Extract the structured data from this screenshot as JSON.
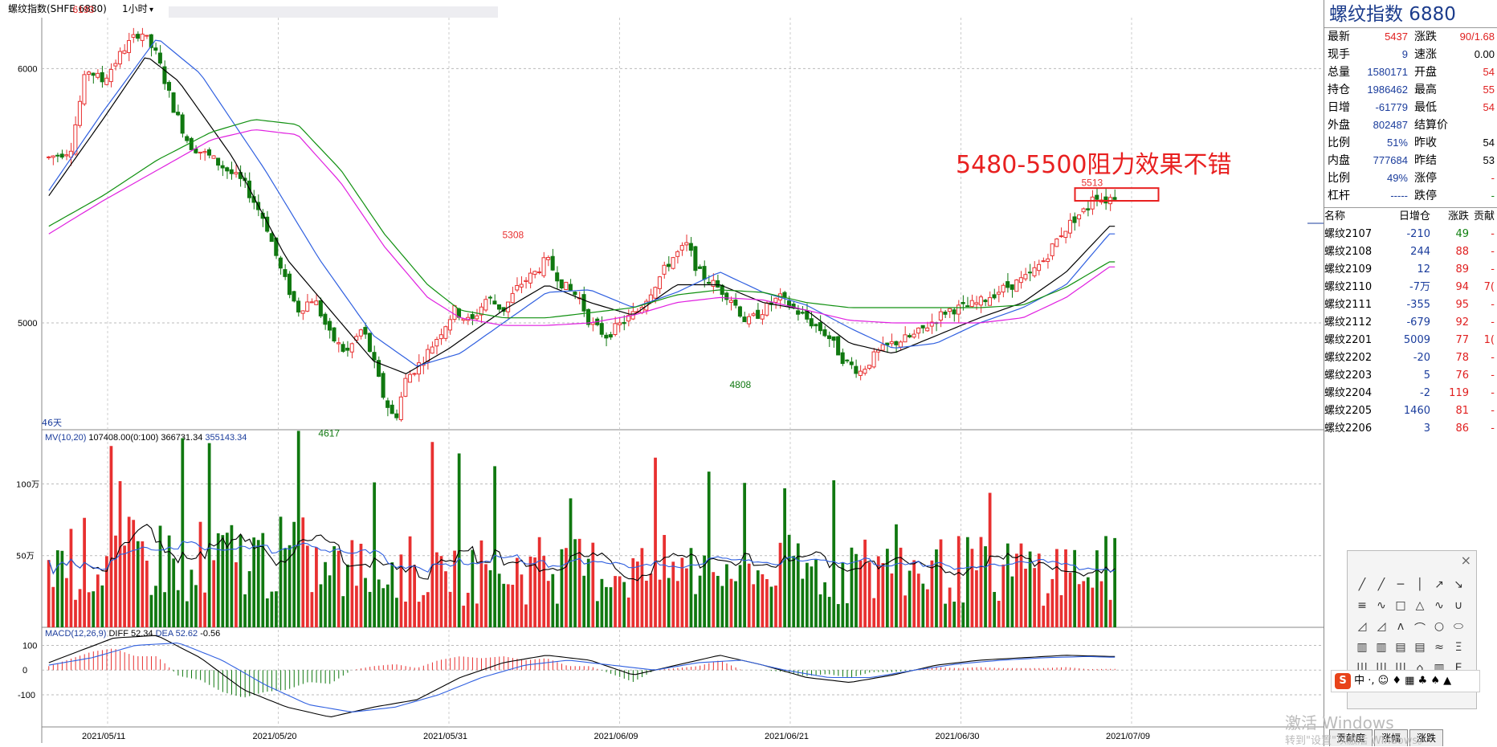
{
  "window": {
    "title": "螺纹指数(SHFE 6880)",
    "period": "1小时"
  },
  "colors": {
    "up": "#e83030",
    "down": "#107810",
    "ma_black": "#000000",
    "ma_blue": "#3060e0",
    "ma_green": "#109010",
    "ma_magenta": "#e020e0",
    "annotation": "#e82020"
  },
  "annotation": {
    "text": "5480-5500阻力效果不错"
  },
  "chart_data": [
    {
      "type": "candlestick",
      "panel": "price",
      "y_ticks": [
        6000,
        5000
      ],
      "ylim": [
        4580,
        6200
      ],
      "x_ticks": [
        "2021/05/11",
        "2021/05/20",
        "2021/05/31",
        "2021/06/09",
        "2021/06/21",
        "2021/06/30",
        "2021/07/09"
      ],
      "price_labels": [
        {
          "text": "6193",
          "value": 6193,
          "at": 0.033
        },
        {
          "text": "5308",
          "value": 5308,
          "at": 0.43
        },
        {
          "text": "4617",
          "value": 4617,
          "at": 0.26
        },
        {
          "text": "4808",
          "value": 4808,
          "at": 0.64
        },
        {
          "text": "5513",
          "value": 5513,
          "at": 0.965
        }
      ],
      "period_label": "46天",
      "close_path": [
        [
          0.0,
          5650
        ],
        [
          0.02,
          5680
        ],
        [
          0.035,
          6000
        ],
        [
          0.05,
          5950
        ],
        [
          0.07,
          6080
        ],
        [
          0.085,
          6150
        ],
        [
          0.1,
          6050
        ],
        [
          0.115,
          5850
        ],
        [
          0.13,
          5700
        ],
        [
          0.15,
          5650
        ],
        [
          0.165,
          5600
        ],
        [
          0.18,
          5550
        ],
        [
          0.2,
          5400
        ],
        [
          0.215,
          5200
        ],
        [
          0.23,
          5050
        ],
        [
          0.245,
          5100
        ],
        [
          0.26,
          4950
        ],
        [
          0.275,
          4880
        ],
        [
          0.29,
          4980
        ],
        [
          0.3,
          4850
        ],
        [
          0.31,
          4700
        ],
        [
          0.32,
          4617
        ],
        [
          0.33,
          4780
        ],
        [
          0.345,
          4850
        ],
        [
          0.36,
          4950
        ],
        [
          0.375,
          5050
        ],
        [
          0.39,
          5000
        ],
        [
          0.405,
          5100
        ],
        [
          0.42,
          5050
        ],
        [
          0.435,
          5150
        ],
        [
          0.45,
          5200
        ],
        [
          0.46,
          5250
        ],
        [
          0.475,
          5150
        ],
        [
          0.49,
          5100
        ],
        [
          0.5,
          5000
        ],
        [
          0.515,
          4950
        ],
        [
          0.53,
          5000
        ],
        [
          0.545,
          5050
        ],
        [
          0.56,
          5150
        ],
        [
          0.575,
          5250
        ],
        [
          0.59,
          5308
        ],
        [
          0.6,
          5200
        ],
        [
          0.615,
          5150
        ],
        [
          0.63,
          5100
        ],
        [
          0.645,
          5000
        ],
        [
          0.66,
          5050
        ],
        [
          0.675,
          5100
        ],
        [
          0.69,
          5050
        ],
        [
          0.705,
          5000
        ],
        [
          0.72,
          4950
        ],
        [
          0.735,
          4850
        ],
        [
          0.75,
          4808
        ],
        [
          0.765,
          4880
        ],
        [
          0.78,
          4920
        ],
        [
          0.8,
          4950
        ],
        [
          0.815,
          5000
        ],
        [
          0.83,
          5050
        ],
        [
          0.845,
          5060
        ],
        [
          0.86,
          5080
        ],
        [
          0.875,
          5120
        ],
        [
          0.89,
          5150
        ],
        [
          0.905,
          5180
        ],
        [
          0.92,
          5250
        ],
        [
          0.935,
          5350
        ],
        [
          0.95,
          5420
        ],
        [
          0.96,
          5450
        ],
        [
          0.965,
          5513
        ],
        [
          0.975,
          5480
        ],
        [
          0.985,
          5500
        ]
      ],
      "ma_lines": [
        {
          "color_key": "ma_black",
          "path": [
            [
              0.0,
              5500
            ],
            [
              0.05,
              5800
            ],
            [
              0.09,
              6050
            ],
            [
              0.12,
              5950
            ],
            [
              0.17,
              5650
            ],
            [
              0.22,
              5250
            ],
            [
              0.27,
              5000
            ],
            [
              0.3,
              4850
            ],
            [
              0.33,
              4800
            ],
            [
              0.37,
              4900
            ],
            [
              0.42,
              5050
            ],
            [
              0.46,
              5150
            ],
            [
              0.5,
              5080
            ],
            [
              0.54,
              5030
            ],
            [
              0.58,
              5150
            ],
            [
              0.62,
              5150
            ],
            [
              0.66,
              5080
            ],
            [
              0.7,
              5050
            ],
            [
              0.74,
              4920
            ],
            [
              0.78,
              4880
            ],
            [
              0.82,
              4950
            ],
            [
              0.86,
              5020
            ],
            [
              0.9,
              5080
            ],
            [
              0.94,
              5200
            ],
            [
              0.98,
              5380
            ]
          ]
        },
        {
          "color_key": "ma_blue",
          "path": [
            [
              0.0,
              5520
            ],
            [
              0.05,
              5830
            ],
            [
              0.1,
              6120
            ],
            [
              0.14,
              5980
            ],
            [
              0.2,
              5600
            ],
            [
              0.25,
              5250
            ],
            [
              0.3,
              4950
            ],
            [
              0.34,
              4830
            ],
            [
              0.38,
              4880
            ],
            [
              0.42,
              5000
            ],
            [
              0.46,
              5120
            ],
            [
              0.5,
              5130
            ],
            [
              0.54,
              5060
            ],
            [
              0.58,
              5120
            ],
            [
              0.62,
              5200
            ],
            [
              0.66,
              5120
            ],
            [
              0.7,
              5070
            ],
            [
              0.74,
              4980
            ],
            [
              0.78,
              4900
            ],
            [
              0.82,
              4920
            ],
            [
              0.86,
              5000
            ],
            [
              0.9,
              5060
            ],
            [
              0.94,
              5150
            ],
            [
              0.98,
              5350
            ]
          ]
        },
        {
          "color_key": "ma_green",
          "path": [
            [
              0.0,
              5380
            ],
            [
              0.05,
              5500
            ],
            [
              0.1,
              5640
            ],
            [
              0.15,
              5750
            ],
            [
              0.19,
              5800
            ],
            [
              0.23,
              5780
            ],
            [
              0.27,
              5600
            ],
            [
              0.31,
              5350
            ],
            [
              0.35,
              5150
            ],
            [
              0.38,
              5050
            ],
            [
              0.42,
              5020
            ],
            [
              0.46,
              5020
            ],
            [
              0.5,
              5040
            ],
            [
              0.54,
              5060
            ],
            [
              0.58,
              5110
            ],
            [
              0.62,
              5130
            ],
            [
              0.66,
              5120
            ],
            [
              0.7,
              5080
            ],
            [
              0.74,
              5060
            ],
            [
              0.78,
              5060
            ],
            [
              0.82,
              5060
            ],
            [
              0.86,
              5060
            ],
            [
              0.9,
              5070
            ],
            [
              0.94,
              5140
            ],
            [
              0.98,
              5240
            ]
          ]
        },
        {
          "color_key": "ma_magenta",
          "path": [
            [
              0.0,
              5350
            ],
            [
              0.05,
              5480
            ],
            [
              0.1,
              5600
            ],
            [
              0.15,
              5720
            ],
            [
              0.19,
              5760
            ],
            [
              0.23,
              5740
            ],
            [
              0.27,
              5550
            ],
            [
              0.31,
              5300
            ],
            [
              0.35,
              5100
            ],
            [
              0.38,
              5020
            ],
            [
              0.42,
              4990
            ],
            [
              0.46,
              4990
            ],
            [
              0.5,
              5000
            ],
            [
              0.54,
              5030
            ],
            [
              0.58,
              5080
            ],
            [
              0.62,
              5100
            ],
            [
              0.66,
              5090
            ],
            [
              0.7,
              5050
            ],
            [
              0.74,
              5010
            ],
            [
              0.78,
              5000
            ],
            [
              0.82,
              5000
            ],
            [
              0.86,
              5000
            ],
            [
              0.9,
              5020
            ],
            [
              0.94,
              5100
            ],
            [
              0.98,
              5220
            ]
          ]
        }
      ],
      "resistance_box": {
        "from": 5480,
        "to": 5530,
        "x_from": 0.965,
        "x_to": 1.03
      }
    },
    {
      "type": "bar",
      "panel": "volume",
      "legend": {
        "name": "MV(10,20)",
        "v1": "107408.00(0:100)",
        "v2": "366731.34",
        "v3": "355143.34"
      },
      "y_ticks": [
        {
          "label": "100万",
          "value": 1000000
        },
        {
          "label": "50万",
          "value": 500000
        }
      ],
      "ylim": [
        0,
        1350000
      ]
    },
    {
      "type": "bar",
      "panel": "macd",
      "legend": {
        "name": "MACD(12,26,9)",
        "diff_label": "DIFF",
        "diff": "52.34",
        "dea_label": "DEA",
        "dea": "52.62",
        "macd": "-0.56"
      },
      "y_ticks": [
        {
          "label": "100",
          "value": 100
        },
        {
          "label": "0",
          "value": 0
        },
        {
          "label": "-100",
          "value": -100
        }
      ],
      "ylim": [
        -230,
        160
      ],
      "diff_path": [
        [
          0.0,
          30
        ],
        [
          0.03,
          80
        ],
        [
          0.06,
          130
        ],
        [
          0.1,
          140
        ],
        [
          0.14,
          50
        ],
        [
          0.18,
          -80
        ],
        [
          0.22,
          -150
        ],
        [
          0.26,
          -190
        ],
        [
          0.3,
          -150
        ],
        [
          0.34,
          -120
        ],
        [
          0.38,
          -30
        ],
        [
          0.42,
          30
        ],
        [
          0.46,
          60
        ],
        [
          0.5,
          40
        ],
        [
          0.54,
          -20
        ],
        [
          0.58,
          20
        ],
        [
          0.62,
          60
        ],
        [
          0.66,
          20
        ],
        [
          0.7,
          -30
        ],
        [
          0.74,
          -50
        ],
        [
          0.78,
          -20
        ],
        [
          0.82,
          20
        ],
        [
          0.86,
          40
        ],
        [
          0.9,
          50
        ],
        [
          0.94,
          60
        ],
        [
          0.98,
          55
        ]
      ],
      "dea_path": [
        [
          0.0,
          20
        ],
        [
          0.04,
          50
        ],
        [
          0.08,
          100
        ],
        [
          0.12,
          110
        ],
        [
          0.16,
          40
        ],
        [
          0.2,
          -60
        ],
        [
          0.24,
          -140
        ],
        [
          0.28,
          -170
        ],
        [
          0.32,
          -150
        ],
        [
          0.36,
          -100
        ],
        [
          0.4,
          -30
        ],
        [
          0.44,
          20
        ],
        [
          0.48,
          40
        ],
        [
          0.52,
          20
        ],
        [
          0.56,
          0
        ],
        [
          0.6,
          30
        ],
        [
          0.64,
          40
        ],
        [
          0.68,
          0
        ],
        [
          0.72,
          -30
        ],
        [
          0.76,
          -30
        ],
        [
          0.8,
          0
        ],
        [
          0.84,
          25
        ],
        [
          0.88,
          40
        ],
        [
          0.92,
          50
        ],
        [
          0.96,
          55
        ],
        [
          0.98,
          52
        ]
      ]
    }
  ],
  "quote": {
    "title": "螺纹指数 6880",
    "rows": [
      [
        {
          "k": "最新",
          "v": "5437",
          "c": "red"
        },
        {
          "k": "涨跌",
          "v": "90/1.68",
          "c": "red"
        }
      ],
      [
        {
          "k": "现手",
          "v": "9",
          "c": "blue"
        },
        {
          "k": "速涨",
          "v": "0.00",
          "c": "blk"
        }
      ],
      [
        {
          "k": "总量",
          "v": "1580171",
          "c": "blue"
        },
        {
          "k": "开盘",
          "v": "54",
          "c": "red"
        }
      ],
      [
        {
          "k": "持仓",
          "v": "1986462",
          "c": "blue"
        },
        {
          "k": "最高",
          "v": "55",
          "c": "red"
        }
      ],
      [
        {
          "k": "日增",
          "v": "-61779",
          "c": "blue"
        },
        {
          "k": "最低",
          "v": "54",
          "c": "red"
        }
      ],
      [
        {
          "k": "外盘",
          "v": "802487",
          "c": "blue"
        },
        {
          "k": "结算价",
          "v": "",
          "c": "blk"
        }
      ],
      [
        {
          "k": "比例",
          "v": "51%",
          "c": "blue"
        },
        {
          "k": "昨收",
          "v": "54",
          "c": "blk"
        }
      ],
      [
        {
          "k": "内盘",
          "v": "777684",
          "c": "blue"
        },
        {
          "k": "昨结",
          "v": "53",
          "c": "blk"
        }
      ],
      [
        {
          "k": "比例",
          "v": "49%",
          "c": "blue"
        },
        {
          "k": "涨停",
          "v": "-",
          "c": "red"
        }
      ],
      [
        {
          "k": "杠杆",
          "v": "-----",
          "c": "blue"
        },
        {
          "k": "跌停",
          "v": "-",
          "c": "green"
        }
      ]
    ]
  },
  "contracts": {
    "headers": [
      "名称",
      "日增仓",
      "涨跌",
      "贡献"
    ],
    "rows": [
      {
        "name": "螺纹2107",
        "oi": "-210",
        "chg": "49",
        "chg_c": "green",
        "x": "-"
      },
      {
        "name": "螺纹2108",
        "oi": "244",
        "chg": "88",
        "chg_c": "red",
        "x": "-"
      },
      {
        "name": "螺纹2109",
        "oi": "12",
        "chg": "89",
        "chg_c": "red",
        "x": "-"
      },
      {
        "name": "螺纹2110",
        "oi": "-7万",
        "chg": "94",
        "chg_c": "red",
        "x": "7("
      },
      {
        "name": "螺纹2111",
        "oi": "-355",
        "chg": "95",
        "chg_c": "red",
        "x": "-"
      },
      {
        "name": "螺纹2112",
        "oi": "-679",
        "chg": "92",
        "chg_c": "red",
        "x": "-"
      },
      {
        "name": "螺纹2201",
        "oi": "5009",
        "chg": "77",
        "chg_c": "red",
        "x": "1("
      },
      {
        "name": "螺纹2202",
        "oi": "-20",
        "chg": "78",
        "chg_c": "red",
        "x": "-"
      },
      {
        "name": "螺纹2203",
        "oi": "5",
        "chg": "76",
        "chg_c": "red",
        "x": "-"
      },
      {
        "name": "螺纹2204",
        "oi": "-2",
        "chg": "119",
        "chg_c": "red",
        "x": "-"
      },
      {
        "name": "螺纹2205",
        "oi": "1460",
        "chg": "81",
        "chg_c": "red",
        "x": "-"
      },
      {
        "name": "螺纹2206",
        "oi": "3",
        "chg": "86",
        "chg_c": "red",
        "x": "-"
      }
    ]
  },
  "toolbox": {
    "close": "×",
    "tools": [
      "╱",
      "╱",
      "─",
      "│",
      "↗",
      "↘",
      "≡",
      "∿",
      "□",
      "△",
      "∿",
      "∪",
      "◿",
      "◿",
      "ʌ",
      "⌒",
      "○",
      "⬭",
      "▥",
      "▥",
      "▤",
      "▤",
      "≈",
      "Ξ",
      "|||",
      "|||",
      "|||",
      "⌂",
      "▥",
      "Ε"
    ]
  },
  "ime": {
    "logo": "S",
    "text": "中 ·, ☺ ♦ ▦ ♣ ♠ ▲"
  },
  "tabs": [
    "贡献度",
    "涨幅",
    "涨跌"
  ],
  "watermark": {
    "line1": "激活 Windows",
    "line2": "转到\"设置\"以激活 Windows。"
  }
}
